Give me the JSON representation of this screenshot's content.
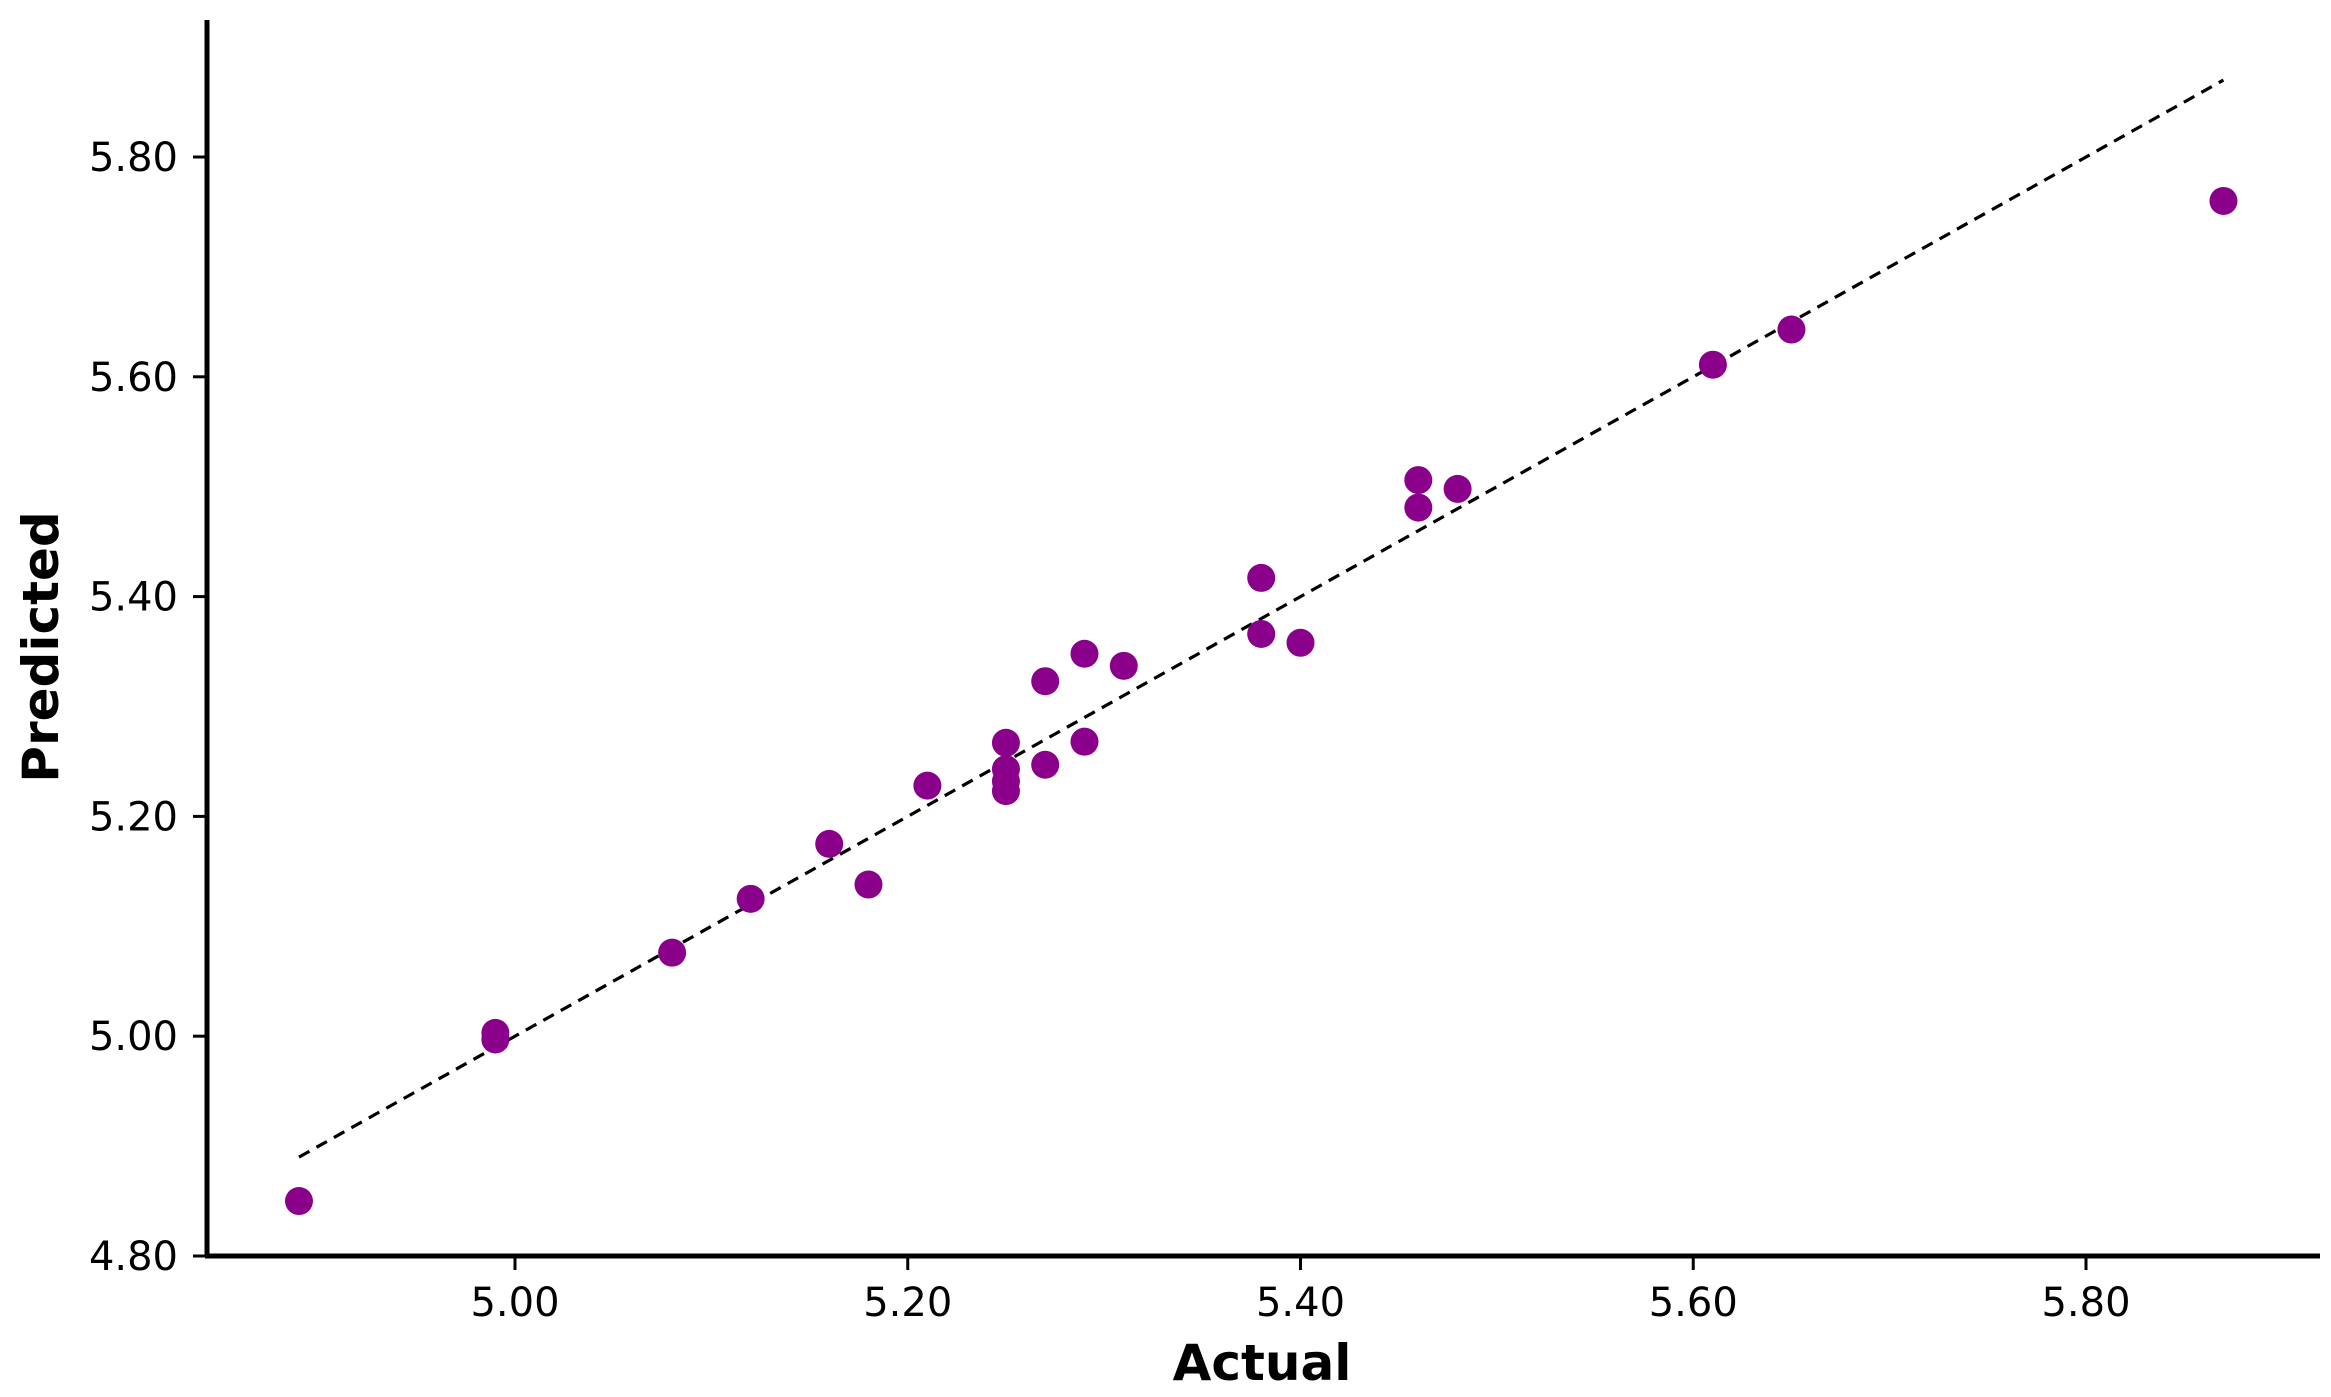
{
  "chart_data": {
    "type": "scatter",
    "title": "",
    "xlabel": "Actual",
    "ylabel": "Predicted",
    "xlim": [
      4.84,
      5.92
    ],
    "ylim": [
      4.8,
      5.92
    ],
    "x_ticks": [
      5.0,
      5.2,
      5.4,
      5.6,
      5.8
    ],
    "y_ticks": [
      4.8,
      5.0,
      5.2,
      5.4,
      5.6,
      5.8
    ],
    "x_tick_labels": [
      "5.00",
      "5.20",
      "5.40",
      "5.60",
      "5.80"
    ],
    "y_tick_labels": [
      "4.80",
      "5.00",
      "5.20",
      "5.40",
      "5.60",
      "5.80"
    ],
    "grid": false,
    "legend": "none",
    "marker_color": "#8B008B",
    "reference_line": {
      "style": "dashed",
      "color": "#000000",
      "x": [
        4.89,
        5.87
      ],
      "y": [
        4.89,
        5.87
      ]
    },
    "points": [
      {
        "x": 4.89,
        "y": 4.85
      },
      {
        "x": 4.99,
        "y": 5.003
      },
      {
        "x": 4.99,
        "y": 4.997
      },
      {
        "x": 5.08,
        "y": 5.076
      },
      {
        "x": 5.12,
        "y": 5.125
      },
      {
        "x": 5.16,
        "y": 5.175
      },
      {
        "x": 5.18,
        "y": 5.138
      },
      {
        "x": 5.21,
        "y": 5.228
      },
      {
        "x": 5.25,
        "y": 5.267
      },
      {
        "x": 5.25,
        "y": 5.243
      },
      {
        "x": 5.25,
        "y": 5.232
      },
      {
        "x": 5.25,
        "y": 5.223
      },
      {
        "x": 5.27,
        "y": 5.323
      },
      {
        "x": 5.27,
        "y": 5.247
      },
      {
        "x": 5.29,
        "y": 5.348
      },
      {
        "x": 5.29,
        "y": 5.268
      },
      {
        "x": 5.31,
        "y": 5.337
      },
      {
        "x": 5.38,
        "y": 5.417
      },
      {
        "x": 5.38,
        "y": 5.366
      },
      {
        "x": 5.4,
        "y": 5.358
      },
      {
        "x": 5.46,
        "y": 5.506
      },
      {
        "x": 5.46,
        "y": 5.481
      },
      {
        "x": 5.48,
        "y": 5.498
      },
      {
        "x": 5.61,
        "y": 5.611
      },
      {
        "x": 5.65,
        "y": 5.643
      },
      {
        "x": 5.87,
        "y": 5.76
      }
    ]
  }
}
